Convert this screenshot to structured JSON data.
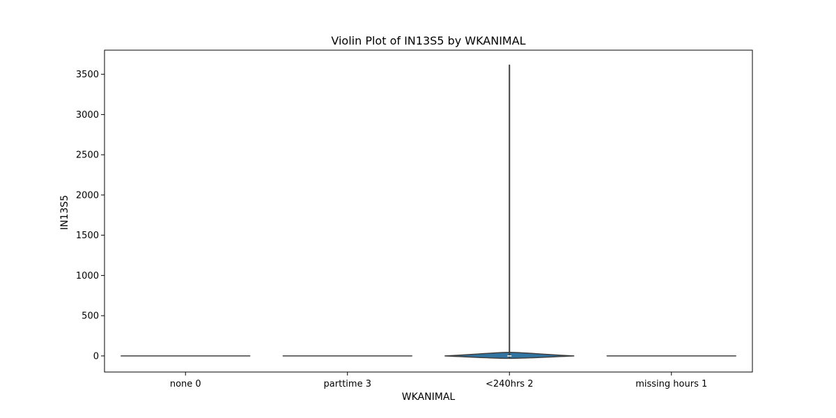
{
  "chart_data": {
    "type": "violin",
    "title": "Violin Plot of IN13S5 by WKANIMAL",
    "xlabel": "WKANIMAL",
    "ylabel": "IN13S5",
    "categories": [
      "none 0",
      "parttime 3",
      "<240hrs 2",
      "missing hours 1"
    ],
    "ylim": [
      -200,
      3800
    ],
    "yticks": [
      0,
      500,
      1000,
      1500,
      2000,
      2500,
      3000,
      3500
    ],
    "violins": [
      {
        "category": "none 0",
        "min": 0,
        "max": 0,
        "median": 0
      },
      {
        "category": "parttime 3",
        "min": 0,
        "max": 0,
        "median": 0
      },
      {
        "category": "<240hrs 2",
        "min": -30,
        "max": 3620,
        "median": 0,
        "q1": 0,
        "q3": 0,
        "body_min": -30,
        "body_max": 45
      },
      {
        "category": "missing hours 1",
        "min": 0,
        "max": 0,
        "median": 0
      }
    ],
    "grid": false,
    "fill_color": "#3274a1",
    "line_color": "#3f3f3f"
  }
}
